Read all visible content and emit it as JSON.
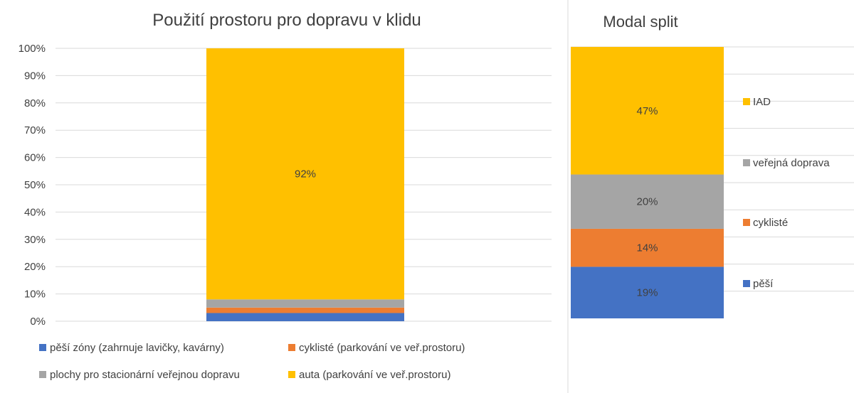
{
  "chart_data": [
    {
      "type": "bar",
      "stacked": true,
      "title": "Použití prostoru pro dopravu v klidu",
      "xlabel": "",
      "ylabel": "",
      "ylim": [
        0,
        100
      ],
      "y_ticks": [
        "0%",
        "10%",
        "20%",
        "30%",
        "40%",
        "50%",
        "60%",
        "70%",
        "80%",
        "90%",
        "100%"
      ],
      "grid": true,
      "legend_position": "bottom",
      "categories": [
        ""
      ],
      "series": [
        {
          "name": "pěší zóny (zahrnuje lavičky, kavárny)",
          "values": [
            3
          ],
          "color": "#4472C4",
          "label": ""
        },
        {
          "name": "cyklisté (parkování ve veř.prostoru)",
          "values": [
            2
          ],
          "color": "#ED7D31",
          "label": ""
        },
        {
          "name": "plochy pro stacionární veřejnou dopravu",
          "values": [
            3
          ],
          "color": "#A5A5A5",
          "label": ""
        },
        {
          "name": "auta (parkování ve veř.prostoru)",
          "values": [
            92
          ],
          "color": "#FFC000",
          "label": "92%"
        }
      ]
    },
    {
      "type": "bar",
      "stacked": true,
      "title": "Modal split",
      "xlabel": "",
      "ylabel": "",
      "ylim": [
        0,
        100
      ],
      "legend_position": "right",
      "categories": [
        ""
      ],
      "series": [
        {
          "name": "pěší",
          "values": [
            19
          ],
          "color": "#4472C4",
          "label": "19%"
        },
        {
          "name": "cyklisté",
          "values": [
            14
          ],
          "color": "#ED7D31",
          "label": "14%"
        },
        {
          "name": "veřejná doprava",
          "values": [
            20
          ],
          "color": "#A5A5A5",
          "label": "20%"
        },
        {
          "name": "IAD",
          "values": [
            47
          ],
          "color": "#FFC000",
          "label": "47%"
        }
      ]
    }
  ]
}
